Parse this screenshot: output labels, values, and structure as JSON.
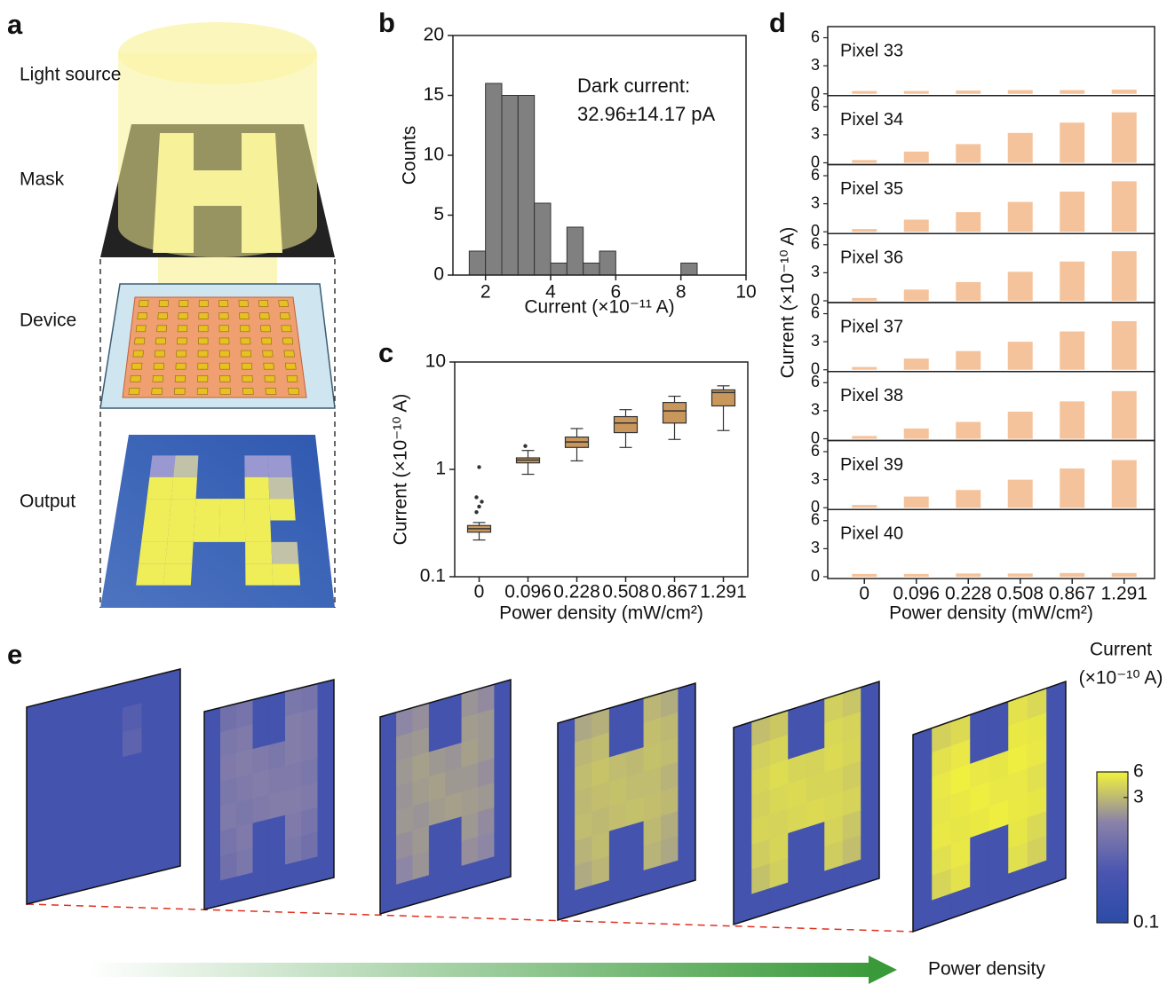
{
  "panel_labels": [
    "a",
    "b",
    "c",
    "d",
    "e"
  ],
  "illustration": {
    "labels": [
      "Light source",
      "Mask",
      "Device",
      "Output"
    ]
  },
  "chart_data": [
    {
      "type": "histogram",
      "xlabel": "Current (×10⁻¹¹ A)",
      "ylabel": "Counts",
      "bins": [
        1.5,
        2,
        2.5,
        3,
        3.5,
        4,
        4.5,
        5,
        5.5,
        6,
        6.5,
        7,
        7.5,
        8,
        8.5
      ],
      "counts": [
        2,
        16,
        15,
        15,
        6,
        1,
        4,
        1,
        2,
        0,
        0,
        0,
        0,
        1
      ],
      "color": "#808080",
      "xlim": [
        1,
        10
      ],
      "xticks": [
        2,
        4,
        6,
        8,
        10
      ],
      "ylim": [
        0,
        20
      ],
      "yticks": [
        0,
        5,
        10,
        15,
        20
      ],
      "annotations": [
        "Dark current:",
        "32.96±14.17 pA"
      ]
    },
    {
      "type": "box",
      "xlabel": "Power density (mW/cm²)",
      "ylabel": "Current (×10⁻¹⁰ A)",
      "categories": [
        "0",
        "0.096",
        "0.228",
        "0.508",
        "0.867",
        "1.291"
      ],
      "boxes": [
        {
          "whislo": 0.22,
          "q1": 0.26,
          "med": 0.28,
          "q3": 0.3,
          "whishi": 0.32,
          "fliers": [
            0.4,
            0.45,
            0.5,
            0.55,
            1.05
          ]
        },
        {
          "whislo": 0.9,
          "q1": 1.15,
          "med": 1.22,
          "q3": 1.28,
          "whishi": 1.5,
          "fliers": [
            1.65
          ]
        },
        {
          "whislo": 1.2,
          "q1": 1.6,
          "med": 1.8,
          "q3": 2.0,
          "whishi": 2.4,
          "fliers": []
        },
        {
          "whislo": 1.6,
          "q1": 2.2,
          "med": 2.7,
          "q3": 3.1,
          "whishi": 3.6,
          "fliers": []
        },
        {
          "whislo": 1.9,
          "q1": 2.7,
          "med": 3.5,
          "q3": 4.2,
          "whishi": 4.8,
          "fliers": []
        },
        {
          "whislo": 2.3,
          "q1": 3.9,
          "med": 5.2,
          "q3": 5.5,
          "whishi": 6.0,
          "fliers": []
        }
      ],
      "color": "#c9975b",
      "point_color": "#333333",
      "log": true,
      "ylim": [
        0.1,
        10
      ],
      "yticks": [
        0.1,
        1,
        10
      ]
    },
    {
      "type": "bar-panels",
      "xlabel": "Power density (mW/cm²)",
      "ylabel": "Current (×10⁻¹⁰ A)",
      "categories": [
        "0",
        "0.096",
        "0.228",
        "0.508",
        "0.867",
        "1.291"
      ],
      "series": [
        {
          "name": "Pixel 33",
          "values": [
            0.3,
            0.3,
            0.35,
            0.4,
            0.4,
            0.45
          ]
        },
        {
          "name": "Pixel 34",
          "values": [
            0.3,
            1.2,
            2.0,
            3.2,
            4.3,
            5.4
          ]
        },
        {
          "name": "Pixel 35",
          "values": [
            0.3,
            1.3,
            2.1,
            3.2,
            4.3,
            5.4
          ]
        },
        {
          "name": "Pixel 36",
          "values": [
            0.3,
            1.2,
            2.0,
            3.1,
            4.2,
            5.3
          ]
        },
        {
          "name": "Pixel 37",
          "values": [
            0.3,
            1.2,
            2.0,
            3.0,
            4.1,
            5.2
          ]
        },
        {
          "name": "Pixel 38",
          "values": [
            0.3,
            1.1,
            1.8,
            2.9,
            4.0,
            5.1
          ]
        },
        {
          "name": "Pixel 39",
          "values": [
            0.3,
            1.2,
            1.9,
            3.0,
            4.2,
            5.1
          ]
        },
        {
          "name": "Pixel 40",
          "values": [
            0.3,
            0.3,
            0.35,
            0.35,
            0.4,
            0.4
          ]
        }
      ],
      "color": "#f5c39b",
      "ylim": [
        0,
        7
      ],
      "yticks": [
        0,
        3,
        6
      ]
    },
    {
      "type": "heatmap-series",
      "xlabel": "Power density",
      "colorbar_title": [
        "Current",
        "(×10⁻¹⁰ A)"
      ],
      "zlim": [
        0.1,
        6
      ],
      "zticks": [
        0.1,
        3,
        6
      ],
      "zlog": true,
      "colors": [
        "#2b4ca8",
        "#4a55b0",
        "#8a82a8",
        "#f2f23c"
      ],
      "panels": [
        {
          "z": [
            [
              0.3,
              0.3,
              0.3,
              0.3,
              0.3,
              0.3,
              0.3,
              0.3
            ],
            [
              0.3,
              0.3,
              0.3,
              0.3,
              0.3,
              0.5,
              0.3,
              0.3
            ],
            [
              0.3,
              0.3,
              0.3,
              0.3,
              0.3,
              0.6,
              0.3,
              0.3
            ],
            [
              0.3,
              0.3,
              0.3,
              0.3,
              0.3,
              0.3,
              0.3,
              0.3
            ],
            [
              0.3,
              0.3,
              0.3,
              0.3,
              0.3,
              0.3,
              0.3,
              0.3
            ],
            [
              0.3,
              0.3,
              0.3,
              0.3,
              0.3,
              0.3,
              0.3,
              0.3
            ],
            [
              0.3,
              0.3,
              0.3,
              0.3,
              0.3,
              0.3,
              0.3,
              0.3
            ],
            [
              0.3,
              0.3,
              0.3,
              0.3,
              0.3,
              0.3,
              0.3,
              0.3
            ]
          ]
        },
        {
          "z": [
            [
              0.3,
              0.9,
              1.0,
              0.3,
              0.3,
              1.1,
              1.0,
              0.3
            ],
            [
              0.3,
              1.1,
              1.2,
              0.3,
              0.3,
              1.3,
              1.2,
              0.3
            ],
            [
              0.3,
              1.2,
              1.3,
              1.2,
              1.1,
              1.3,
              1.2,
              0.3
            ],
            [
              0.3,
              1.1,
              1.2,
              1.3,
              1.2,
              1.2,
              1.1,
              0.3
            ],
            [
              0.3,
              1.2,
              1.1,
              1.2,
              1.3,
              1.3,
              1.2,
              0.3
            ],
            [
              0.3,
              1.0,
              1.2,
              0.3,
              0.3,
              1.2,
              1.0,
              0.3
            ],
            [
              0.3,
              0.9,
              1.1,
              0.3,
              0.3,
              1.1,
              0.9,
              0.3
            ],
            [
              0.3,
              0.3,
              0.3,
              0.3,
              0.3,
              0.3,
              0.3,
              0.3
            ]
          ]
        },
        {
          "z": [
            [
              0.3,
              1.6,
              1.8,
              0.3,
              0.3,
              1.9,
              1.7,
              0.3
            ],
            [
              0.3,
              1.9,
              2.0,
              0.3,
              0.3,
              2.1,
              2.0,
              0.3
            ],
            [
              0.3,
              2.0,
              2.2,
              2.0,
              1.9,
              2.2,
              2.0,
              0.3
            ],
            [
              0.3,
              1.9,
              2.1,
              2.2,
              2.0,
              2.0,
              1.8,
              0.3
            ],
            [
              0.3,
              2.0,
              1.9,
              2.1,
              2.2,
              2.1,
              2.0,
              0.3
            ],
            [
              0.3,
              1.8,
              2.0,
              0.3,
              0.3,
              2.0,
              1.7,
              0.3
            ],
            [
              0.3,
              1.6,
              1.9,
              0.3,
              0.3,
              1.8,
              1.6,
              0.3
            ],
            [
              0.3,
              0.3,
              0.3,
              0.3,
              0.3,
              0.3,
              0.3,
              0.3
            ]
          ]
        },
        {
          "z": [
            [
              0.3,
              2.4,
              2.7,
              0.3,
              0.3,
              2.9,
              2.6,
              0.3
            ],
            [
              0.3,
              2.9,
              3.1,
              0.3,
              0.3,
              3.2,
              3.0,
              0.3
            ],
            [
              0.3,
              3.1,
              3.4,
              3.1,
              3.0,
              3.3,
              3.1,
              0.3
            ],
            [
              0.3,
              3.0,
              3.2,
              3.3,
              3.1,
              3.1,
              2.8,
              0.3
            ],
            [
              0.3,
              3.1,
              3.0,
              3.2,
              3.3,
              3.2,
              3.0,
              0.3
            ],
            [
              0.3,
              2.8,
              3.1,
              0.3,
              0.3,
              3.0,
              2.6,
              0.3
            ],
            [
              0.3,
              2.5,
              2.9,
              0.3,
              0.3,
              2.8,
              2.4,
              0.3
            ],
            [
              0.3,
              0.3,
              0.3,
              0.3,
              0.3,
              0.3,
              0.3,
              0.3
            ]
          ]
        },
        {
          "z": [
            [
              0.3,
              3.2,
              3.6,
              0.3,
              0.3,
              3.9,
              3.5,
              0.3
            ],
            [
              0.3,
              3.9,
              4.2,
              0.3,
              0.3,
              4.3,
              4.1,
              0.3
            ],
            [
              0.3,
              4.2,
              4.6,
              4.2,
              4.1,
              4.5,
              4.2,
              0.3
            ],
            [
              0.3,
              4.0,
              4.3,
              4.5,
              4.2,
              4.2,
              3.8,
              0.3
            ],
            [
              0.3,
              4.2,
              4.1,
              4.3,
              4.5,
              4.3,
              4.1,
              0.3
            ],
            [
              0.3,
              3.8,
              4.2,
              0.3,
              0.3,
              4.1,
              3.5,
              0.3
            ],
            [
              0.3,
              3.3,
              3.9,
              0.3,
              0.3,
              3.8,
              3.2,
              0.3
            ],
            [
              0.3,
              0.3,
              0.3,
              0.3,
              0.3,
              0.3,
              0.3,
              0.3
            ]
          ]
        },
        {
          "z": [
            [
              0.3,
              4.0,
              4.5,
              0.3,
              0.3,
              4.9,
              4.4,
              0.3
            ],
            [
              0.3,
              4.9,
              5.3,
              0.3,
              0.3,
              5.4,
              5.2,
              0.3
            ],
            [
              0.3,
              5.3,
              5.8,
              5.3,
              5.2,
              5.7,
              5.3,
              0.3
            ],
            [
              0.3,
              5.1,
              5.4,
              5.7,
              5.3,
              5.3,
              4.8,
              0.3
            ],
            [
              0.3,
              5.3,
              5.2,
              5.4,
              5.7,
              5.4,
              5.2,
              0.3
            ],
            [
              0.3,
              4.8,
              5.3,
              0.3,
              0.3,
              5.2,
              4.4,
              0.3
            ],
            [
              0.3,
              4.2,
              4.9,
              0.3,
              0.3,
              4.8,
              4.0,
              0.3
            ],
            [
              0.3,
              0.3,
              0.3,
              0.3,
              0.3,
              0.3,
              0.3,
              0.3
            ]
          ]
        }
      ]
    }
  ]
}
